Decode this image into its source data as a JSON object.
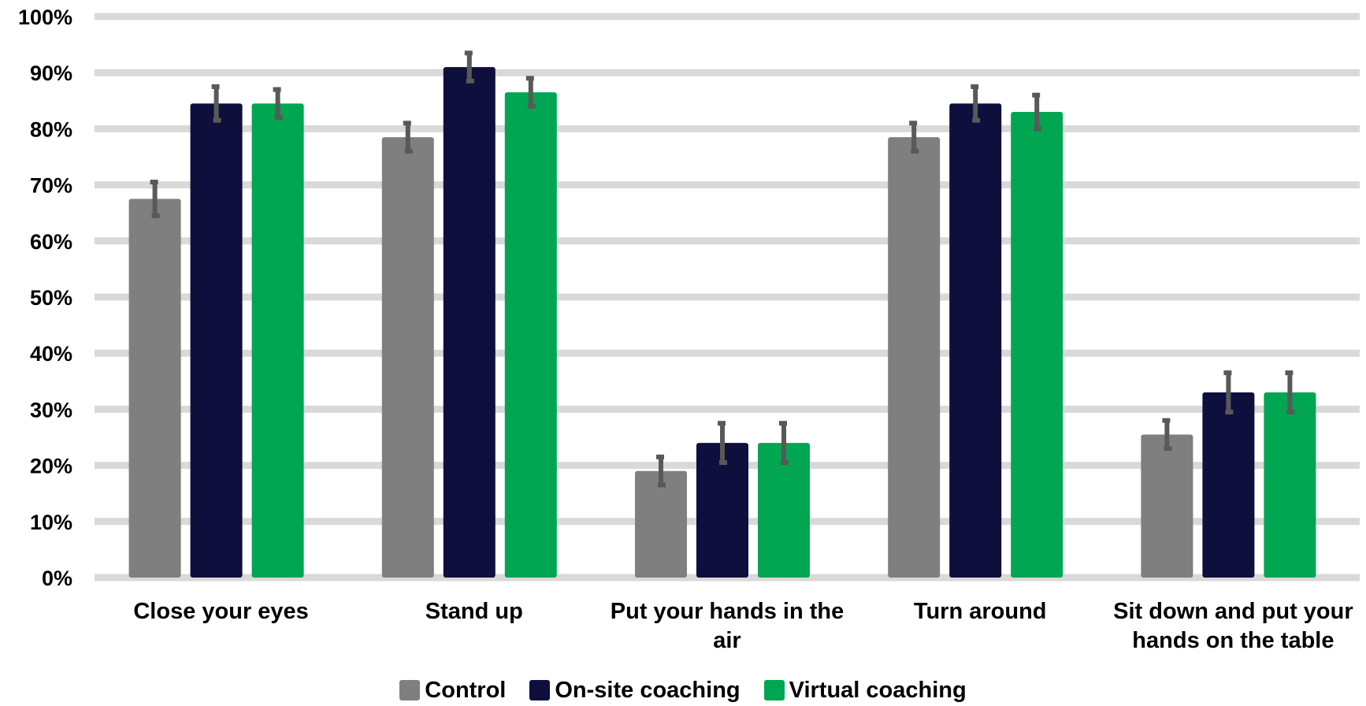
{
  "chart_data": {
    "type": "bar",
    "categories": [
      [
        "Close your eyes"
      ],
      [
        "Stand up"
      ],
      [
        "Put your hands in the",
        "air"
      ],
      [
        "Turn around"
      ],
      [
        "Sit down and put your",
        "hands on the table"
      ]
    ],
    "series": [
      {
        "name": "Control",
        "color": "#7f7f7f",
        "values": [
          67.5,
          78.5,
          19,
          78.5,
          25.5
        ],
        "errors": [
          3,
          2.5,
          2.5,
          2.5,
          2.5
        ]
      },
      {
        "name": "On-site coaching",
        "color": "#0f0f3d",
        "values": [
          84.5,
          91,
          24,
          84.5,
          33
        ],
        "errors": [
          3,
          2.5,
          3.5,
          3,
          3.5
        ]
      },
      {
        "name": "Virtual coaching",
        "color": "#00a651",
        "values": [
          84.5,
          86.5,
          24,
          83,
          33
        ],
        "errors": [
          2.5,
          2.5,
          3.5,
          3,
          3.5
        ]
      }
    ],
    "y_ticks": [
      "0%",
      "10%",
      "20%",
      "30%",
      "40%",
      "50%",
      "60%",
      "70%",
      "80%",
      "90%",
      "100%"
    ],
    "ylim": [
      0,
      100
    ],
    "grid": true,
    "gridline_color": "#d9d9d9",
    "errorbar_color": "#595959",
    "legend_position": "bottom",
    "title": "",
    "xlabel": "",
    "ylabel": ""
  }
}
